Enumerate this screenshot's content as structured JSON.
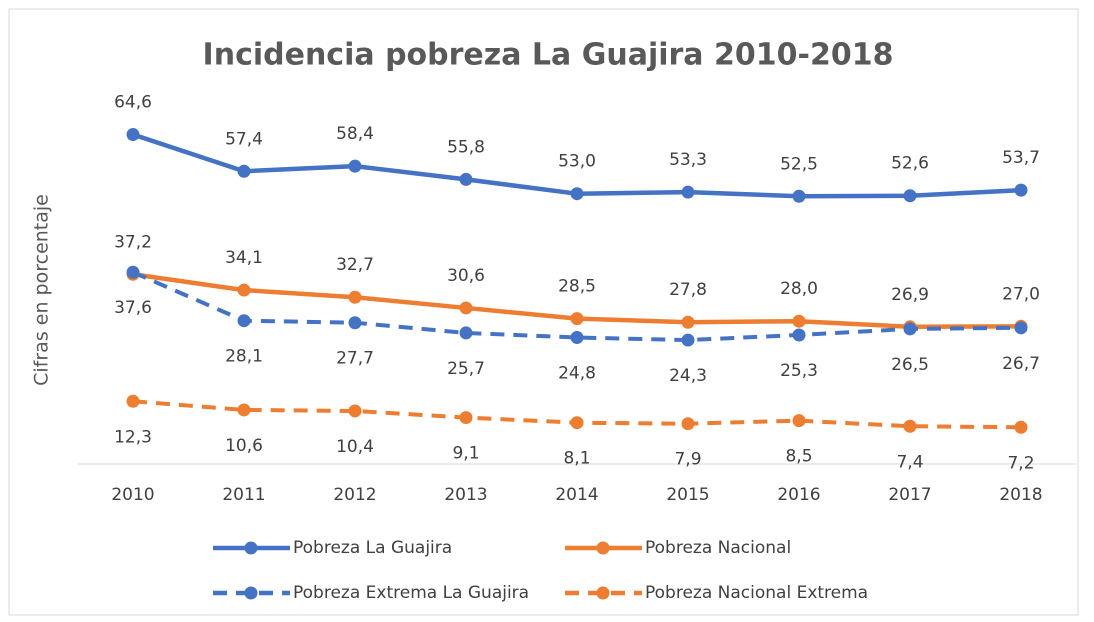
{
  "chart_data": {
    "type": "line",
    "title": "Incidencia pobreza La Guajira 2010-2018",
    "y_label": "Cifras en porcentaje",
    "categories": [
      "2010",
      "2011",
      "2012",
      "2013",
      "2014",
      "2015",
      "2016",
      "2017",
      "2018"
    ],
    "ylim": [
      0,
      70
    ],
    "series": [
      {
        "name": "Pobreza La Guajira",
        "color": "#4472c4",
        "dashed": false,
        "label_position": "above",
        "values": [
          64.6,
          57.4,
          58.4,
          55.8,
          53.0,
          53.3,
          52.5,
          52.6,
          53.7
        ],
        "value_labels": [
          "64,6",
          "57,4",
          "58,4",
          "55,8",
          "53,0",
          "53,3",
          "52,5",
          "52,6",
          "53,7"
        ]
      },
      {
        "name": "Pobreza Nacional",
        "color": "#ed7d31",
        "dashed": false,
        "label_position": "above",
        "values": [
          37.2,
          34.1,
          32.7,
          30.6,
          28.5,
          27.8,
          28.0,
          26.9,
          27.0
        ],
        "value_labels": [
          "37,2",
          "34,1",
          "32,7",
          "30,6",
          "28,5",
          "27,8",
          "28,0",
          "26,9",
          "27,0"
        ]
      },
      {
        "name": "Pobreza Extrema La Guajira",
        "color": "#4472c4",
        "dashed": true,
        "label_position": "below",
        "values": [
          37.6,
          28.1,
          27.7,
          25.7,
          24.8,
          24.3,
          25.3,
          26.5,
          26.7
        ],
        "value_labels": [
          "37,6",
          "28,1",
          "27,7",
          "25,7",
          "24,8",
          "24,3",
          "25,3",
          "26,5",
          "26,7"
        ]
      },
      {
        "name": "Pobreza Nacional Extrema",
        "color": "#ed7d31",
        "dashed": true,
        "label_position": "below",
        "values": [
          12.3,
          10.6,
          10.4,
          9.1,
          8.1,
          7.9,
          8.5,
          7.4,
          7.2
        ],
        "value_labels": [
          "12,3",
          "10,6",
          "10,4",
          "9,1",
          "8,1",
          "7,9",
          "8,5",
          "7,4",
          "7,2"
        ]
      }
    ]
  }
}
